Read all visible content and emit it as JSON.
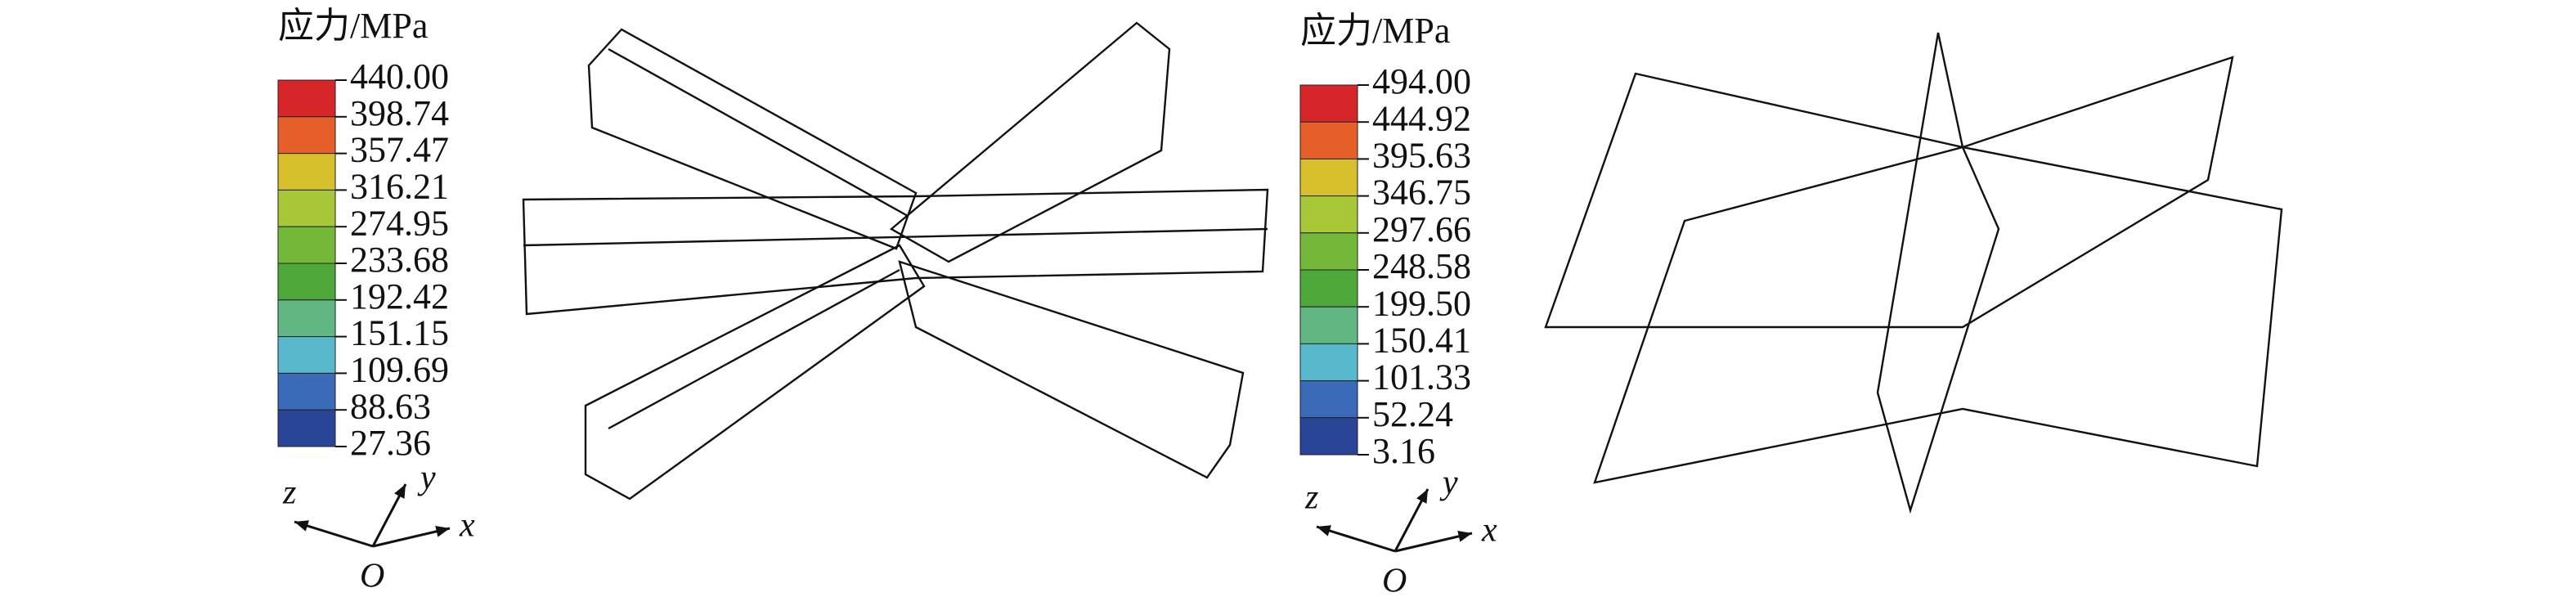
{
  "legends": [
    {
      "title": "应力/MPa",
      "labels": [
        "440.00",
        "398.74",
        "357.47",
        "316.21",
        "274.95",
        "233.68",
        "192.42",
        "151.15",
        "109.69",
        "88.63",
        "27.36"
      ],
      "colors": [
        "#d6262a",
        "#e6602a",
        "#d8c02c",
        "#a8c83a",
        "#74b83a",
        "#4ea83a",
        "#62b882",
        "#58b8cc",
        "#3a6ab8",
        "#2a4598"
      ],
      "axes": {
        "z": "z",
        "y": "y",
        "x": "x",
        "origin": "O"
      }
    },
    {
      "title": "应力/MPa",
      "labels": [
        "494.00",
        "444.92",
        "395.63",
        "346.75",
        "297.66",
        "248.58",
        "199.50",
        "150.41",
        "101.33",
        "52.24",
        "3.16"
      ],
      "colors": [
        "#d6262a",
        "#e6602a",
        "#d8c02c",
        "#a8c83a",
        "#74b83a",
        "#4ea83a",
        "#62b882",
        "#58b8cc",
        "#3a6ab8",
        "#2a4598"
      ],
      "axes": {
        "z": "z",
        "y": "y",
        "x": "x",
        "origin": "O"
      }
    }
  ]
}
